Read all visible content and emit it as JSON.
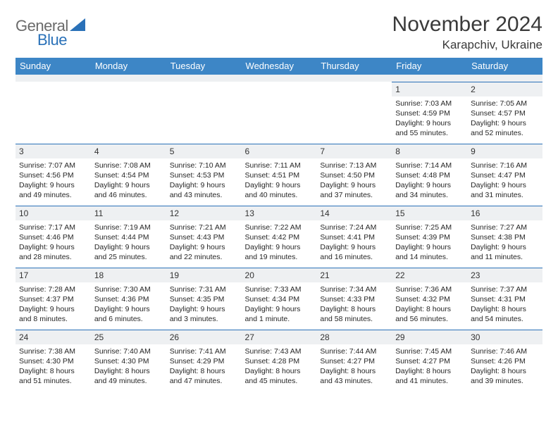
{
  "logo": {
    "general": "General",
    "blue": "Blue"
  },
  "title": "November 2024",
  "location": "Karapchiv, Ukraine",
  "style": {
    "header_bg": "#3d86c6",
    "header_text": "#ffffff",
    "daynum_bg": "#eef0f2",
    "border_color": "#2a71b8",
    "page_bg": "#ffffff",
    "text_color": "#262626",
    "title_fontsize": 30,
    "location_fontsize": 17,
    "dow_fontsize": 13,
    "daynum_fontsize": 12,
    "info_fontsize": 10.5
  },
  "dow": [
    "Sunday",
    "Monday",
    "Tuesday",
    "Wednesday",
    "Thursday",
    "Friday",
    "Saturday"
  ],
  "weeks": [
    [
      null,
      null,
      null,
      null,
      null,
      {
        "n": "1",
        "sr": "7:03 AM",
        "ss": "4:59 PM",
        "dl": "9 hours and 55 minutes."
      },
      {
        "n": "2",
        "sr": "7:05 AM",
        "ss": "4:57 PM",
        "dl": "9 hours and 52 minutes."
      }
    ],
    [
      {
        "n": "3",
        "sr": "7:07 AM",
        "ss": "4:56 PM",
        "dl": "9 hours and 49 minutes."
      },
      {
        "n": "4",
        "sr": "7:08 AM",
        "ss": "4:54 PM",
        "dl": "9 hours and 46 minutes."
      },
      {
        "n": "5",
        "sr": "7:10 AM",
        "ss": "4:53 PM",
        "dl": "9 hours and 43 minutes."
      },
      {
        "n": "6",
        "sr": "7:11 AM",
        "ss": "4:51 PM",
        "dl": "9 hours and 40 minutes."
      },
      {
        "n": "7",
        "sr": "7:13 AM",
        "ss": "4:50 PM",
        "dl": "9 hours and 37 minutes."
      },
      {
        "n": "8",
        "sr": "7:14 AM",
        "ss": "4:48 PM",
        "dl": "9 hours and 34 minutes."
      },
      {
        "n": "9",
        "sr": "7:16 AM",
        "ss": "4:47 PM",
        "dl": "9 hours and 31 minutes."
      }
    ],
    [
      {
        "n": "10",
        "sr": "7:17 AM",
        "ss": "4:46 PM",
        "dl": "9 hours and 28 minutes."
      },
      {
        "n": "11",
        "sr": "7:19 AM",
        "ss": "4:44 PM",
        "dl": "9 hours and 25 minutes."
      },
      {
        "n": "12",
        "sr": "7:21 AM",
        "ss": "4:43 PM",
        "dl": "9 hours and 22 minutes."
      },
      {
        "n": "13",
        "sr": "7:22 AM",
        "ss": "4:42 PM",
        "dl": "9 hours and 19 minutes."
      },
      {
        "n": "14",
        "sr": "7:24 AM",
        "ss": "4:41 PM",
        "dl": "9 hours and 16 minutes."
      },
      {
        "n": "15",
        "sr": "7:25 AM",
        "ss": "4:39 PM",
        "dl": "9 hours and 14 minutes."
      },
      {
        "n": "16",
        "sr": "7:27 AM",
        "ss": "4:38 PM",
        "dl": "9 hours and 11 minutes."
      }
    ],
    [
      {
        "n": "17",
        "sr": "7:28 AM",
        "ss": "4:37 PM",
        "dl": "9 hours and 8 minutes."
      },
      {
        "n": "18",
        "sr": "7:30 AM",
        "ss": "4:36 PM",
        "dl": "9 hours and 6 minutes."
      },
      {
        "n": "19",
        "sr": "7:31 AM",
        "ss": "4:35 PM",
        "dl": "9 hours and 3 minutes."
      },
      {
        "n": "20",
        "sr": "7:33 AM",
        "ss": "4:34 PM",
        "dl": "9 hours and 1 minute."
      },
      {
        "n": "21",
        "sr": "7:34 AM",
        "ss": "4:33 PM",
        "dl": "8 hours and 58 minutes."
      },
      {
        "n": "22",
        "sr": "7:36 AM",
        "ss": "4:32 PM",
        "dl": "8 hours and 56 minutes."
      },
      {
        "n": "23",
        "sr": "7:37 AM",
        "ss": "4:31 PM",
        "dl": "8 hours and 54 minutes."
      }
    ],
    [
      {
        "n": "24",
        "sr": "7:38 AM",
        "ss": "4:30 PM",
        "dl": "8 hours and 51 minutes."
      },
      {
        "n": "25",
        "sr": "7:40 AM",
        "ss": "4:30 PM",
        "dl": "8 hours and 49 minutes."
      },
      {
        "n": "26",
        "sr": "7:41 AM",
        "ss": "4:29 PM",
        "dl": "8 hours and 47 minutes."
      },
      {
        "n": "27",
        "sr": "7:43 AM",
        "ss": "4:28 PM",
        "dl": "8 hours and 45 minutes."
      },
      {
        "n": "28",
        "sr": "7:44 AM",
        "ss": "4:27 PM",
        "dl": "8 hours and 43 minutes."
      },
      {
        "n": "29",
        "sr": "7:45 AM",
        "ss": "4:27 PM",
        "dl": "8 hours and 41 minutes."
      },
      {
        "n": "30",
        "sr": "7:46 AM",
        "ss": "4:26 PM",
        "dl": "8 hours and 39 minutes."
      }
    ]
  ],
  "labels": {
    "sunrise": "Sunrise: ",
    "sunset": "Sunset: ",
    "daylight": "Daylight: "
  }
}
